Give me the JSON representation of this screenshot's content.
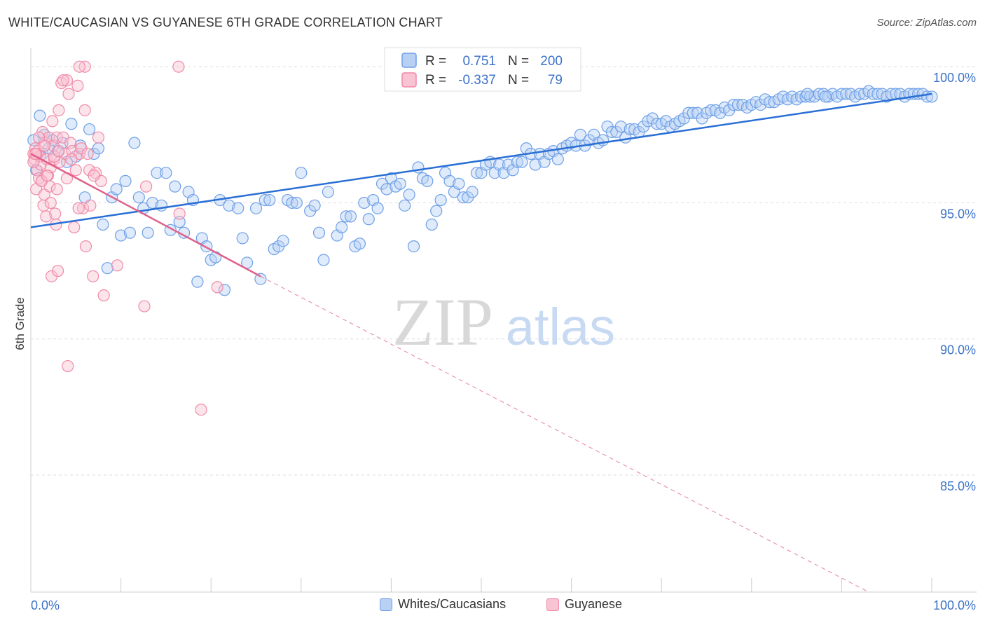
{
  "title": "WHITE/CAUCASIAN VS GUYANESE 6TH GRADE CORRELATION CHART",
  "source": "Source: ZipAtlas.com",
  "watermark": {
    "zip": "ZIP",
    "atlas": "atlas"
  },
  "colors": {
    "blue": "#6ea0e8",
    "blue_fill": "#b8d0f3",
    "blue_line": "#2a6fd4",
    "pink": "#f08aa8",
    "pink_fill": "#f8c3d3",
    "pink_line": "#e0608a",
    "axis_text": "#3d73c9",
    "grid": "#dddddd"
  },
  "legend_box": {
    "rows": [
      {
        "r_label": "R =",
        "r_value": "0.751",
        "n_label": "N =",
        "n_value": "200"
      },
      {
        "r_label": "R =",
        "r_value": "-0.337",
        "n_label": "N =",
        "n_value": "79"
      }
    ]
  },
  "legend_bottom": {
    "blue": "Whites/Caucasians",
    "pink": "Guyanese"
  },
  "chart_data": {
    "type": "scatter",
    "ylabel": "6th Grade",
    "xlabel": "",
    "xlim": [
      0,
      100
    ],
    "ylim": [
      80.7,
      100.7
    ],
    "x_tick_labels": [
      "0.0%",
      "100.0%"
    ],
    "y_ticks": [
      85,
      90,
      95,
      100
    ],
    "y_tick_labels": [
      "85.0%",
      "90.0%",
      "95.0%",
      "100.0%"
    ],
    "grid": true,
    "series": [
      {
        "name": "Whites/Caucasians",
        "trend": {
          "x": [
            0,
            100
          ],
          "y": [
            94.1,
            99.0
          ]
        },
        "points": [
          [
            0.3,
            97.3
          ],
          [
            0.6,
            96.2
          ],
          [
            1.0,
            98.2
          ],
          [
            1.3,
            96.8
          ],
          [
            1.5,
            97.5
          ],
          [
            2.0,
            97.0
          ],
          [
            2.4,
            97.3
          ],
          [
            3.0,
            96.9
          ],
          [
            3.5,
            97.2
          ],
          [
            4.0,
            96.5
          ],
          [
            4.5,
            97.9
          ],
          [
            5.0,
            96.7
          ],
          [
            5.5,
            97.1
          ],
          [
            6.0,
            95.2
          ],
          [
            6.5,
            97.7
          ],
          [
            7.0,
            96.8
          ],
          [
            7.5,
            97.0
          ],
          [
            8.0,
            94.2
          ],
          [
            8.5,
            92.6
          ],
          [
            9.0,
            95.2
          ],
          [
            9.5,
            95.5
          ],
          [
            10.0,
            93.8
          ],
          [
            10.5,
            95.8
          ],
          [
            11.0,
            93.9
          ],
          [
            11.5,
            97.2
          ],
          [
            12.0,
            95.2
          ],
          [
            12.5,
            94.8
          ],
          [
            13.0,
            93.9
          ],
          [
            13.5,
            95.0
          ],
          [
            14.0,
            96.1
          ],
          [
            14.5,
            94.9
          ],
          [
            15.0,
            96.1
          ],
          [
            15.5,
            94.0
          ],
          [
            16.0,
            95.6
          ],
          [
            16.5,
            94.3
          ],
          [
            17.0,
            93.9
          ],
          [
            17.5,
            95.4
          ],
          [
            18.0,
            95.1
          ],
          [
            18.5,
            92.1
          ],
          [
            19.0,
            93.7
          ],
          [
            19.5,
            93.4
          ],
          [
            20.0,
            92.9
          ],
          [
            20.5,
            93.0
          ],
          [
            21.0,
            95.1
          ],
          [
            21.5,
            91.8
          ],
          [
            22.0,
            94.9
          ],
          [
            23.0,
            94.8
          ],
          [
            23.5,
            93.7
          ],
          [
            24.0,
            92.8
          ],
          [
            25.0,
            94.8
          ],
          [
            25.5,
            92.2
          ],
          [
            26.0,
            95.1
          ],
          [
            26.5,
            95.1
          ],
          [
            27.0,
            93.3
          ],
          [
            27.5,
            93.4
          ],
          [
            28.0,
            93.6
          ],
          [
            28.5,
            95.1
          ],
          [
            29.0,
            95.0
          ],
          [
            29.5,
            95.0
          ],
          [
            30.0,
            96.1
          ],
          [
            31.0,
            94.7
          ],
          [
            31.5,
            94.9
          ],
          [
            32.0,
            93.9
          ],
          [
            32.5,
            92.9
          ],
          [
            33.0,
            95.4
          ],
          [
            34.0,
            93.8
          ],
          [
            34.5,
            94.1
          ],
          [
            35.0,
            94.5
          ],
          [
            35.5,
            94.5
          ],
          [
            36.0,
            93.4
          ],
          [
            36.5,
            93.5
          ],
          [
            37.0,
            95.0
          ],
          [
            37.5,
            94.4
          ],
          [
            38.0,
            95.1
          ],
          [
            38.5,
            94.8
          ],
          [
            39.0,
            95.7
          ],
          [
            39.5,
            95.5
          ],
          [
            40.0,
            95.9
          ],
          [
            40.5,
            95.6
          ],
          [
            41.0,
            95.7
          ],
          [
            41.5,
            94.9
          ],
          [
            42.0,
            95.3
          ],
          [
            42.5,
            93.4
          ],
          [
            43.0,
            96.3
          ],
          [
            43.5,
            95.9
          ],
          [
            44.0,
            95.8
          ],
          [
            44.5,
            94.2
          ],
          [
            45.0,
            94.7
          ],
          [
            45.5,
            95.1
          ],
          [
            46.0,
            96.1
          ],
          [
            46.5,
            95.8
          ],
          [
            47.0,
            95.4
          ],
          [
            47.5,
            95.7
          ],
          [
            48.0,
            95.2
          ],
          [
            48.5,
            95.2
          ],
          [
            49.0,
            95.4
          ],
          [
            49.5,
            96.1
          ],
          [
            50.0,
            96.1
          ],
          [
            50.5,
            96.4
          ],
          [
            51.0,
            96.5
          ],
          [
            51.5,
            96.1
          ],
          [
            52.0,
            96.4
          ],
          [
            52.5,
            96.1
          ],
          [
            53.0,
            96.4
          ],
          [
            53.5,
            96.2
          ],
          [
            54.0,
            96.5
          ],
          [
            54.5,
            96.5
          ],
          [
            55.0,
            97.0
          ],
          [
            55.5,
            96.8
          ],
          [
            56.0,
            96.4
          ],
          [
            56.5,
            96.8
          ],
          [
            57.0,
            96.5
          ],
          [
            57.5,
            96.8
          ],
          [
            58.0,
            96.9
          ],
          [
            58.5,
            96.6
          ],
          [
            59.0,
            97.0
          ],
          [
            59.5,
            97.1
          ],
          [
            60.0,
            97.2
          ],
          [
            60.5,
            97.1
          ],
          [
            61.0,
            97.5
          ],
          [
            61.5,
            97.1
          ],
          [
            62.0,
            97.3
          ],
          [
            62.5,
            97.5
          ],
          [
            63.0,
            97.2
          ],
          [
            63.5,
            97.3
          ],
          [
            64.0,
            97.8
          ],
          [
            64.5,
            97.6
          ],
          [
            65.0,
            97.6
          ],
          [
            65.5,
            97.8
          ],
          [
            66.0,
            97.4
          ],
          [
            66.5,
            97.7
          ],
          [
            67.0,
            97.7
          ],
          [
            67.5,
            97.6
          ],
          [
            68.0,
            97.8
          ],
          [
            68.5,
            98.0
          ],
          [
            69.0,
            98.1
          ],
          [
            69.5,
            97.9
          ],
          [
            70.0,
            97.9
          ],
          [
            70.5,
            98.0
          ],
          [
            71.0,
            97.8
          ],
          [
            71.5,
            97.9
          ],
          [
            72.0,
            98.0
          ],
          [
            72.5,
            98.1
          ],
          [
            73.0,
            98.3
          ],
          [
            73.5,
            98.3
          ],
          [
            74.0,
            98.3
          ],
          [
            74.5,
            98.1
          ],
          [
            75.0,
            98.3
          ],
          [
            75.5,
            98.4
          ],
          [
            76.0,
            98.4
          ],
          [
            76.5,
            98.3
          ],
          [
            77.0,
            98.5
          ],
          [
            77.5,
            98.4
          ],
          [
            78.0,
            98.6
          ],
          [
            78.5,
            98.6
          ],
          [
            79.0,
            98.6
          ],
          [
            79.5,
            98.5
          ],
          [
            80.0,
            98.6
          ],
          [
            80.5,
            98.7
          ],
          [
            81.0,
            98.6
          ],
          [
            81.5,
            98.8
          ],
          [
            82.0,
            98.7
          ],
          [
            82.5,
            98.7
          ],
          [
            83.0,
            98.8
          ],
          [
            83.5,
            98.9
          ],
          [
            84.0,
            98.8
          ],
          [
            84.5,
            98.9
          ],
          [
            85.0,
            98.8
          ],
          [
            85.5,
            98.9
          ],
          [
            86.0,
            98.9
          ],
          [
            86.5,
            98.9
          ],
          [
            87.0,
            98.9
          ],
          [
            87.5,
            99.0
          ],
          [
            88.0,
            99.0
          ],
          [
            88.5,
            98.9
          ],
          [
            89.0,
            99.0
          ],
          [
            89.5,
            98.9
          ],
          [
            90.0,
            99.0
          ],
          [
            90.5,
            99.0
          ],
          [
            91.0,
            99.0
          ],
          [
            91.5,
            98.9
          ],
          [
            92.0,
            99.0
          ],
          [
            92.5,
            99.0
          ],
          [
            93.0,
            99.1
          ],
          [
            93.5,
            99.0
          ],
          [
            94.0,
            99.0
          ],
          [
            94.5,
            99.0
          ],
          [
            95.0,
            98.9
          ],
          [
            95.5,
            99.0
          ],
          [
            96.0,
            99.0
          ],
          [
            96.5,
            99.0
          ],
          [
            97.0,
            98.9
          ],
          [
            97.5,
            99.0
          ],
          [
            98.0,
            99.0
          ],
          [
            98.5,
            99.0
          ],
          [
            99.0,
            99.0
          ],
          [
            99.5,
            98.9
          ],
          [
            100.0,
            98.9
          ],
          [
            88.2,
            98.9
          ],
          [
            86.2,
            99.0
          ]
        ]
      },
      {
        "name": "Guyanese",
        "trend": {
          "x": [
            0,
            25.5
          ],
          "y": [
            96.8,
            92.3
          ],
          "dash_x": [
            25.5,
            93.0
          ],
          "dash_y": [
            92.3,
            80.7
          ]
        },
        "points": [
          [
            0.3,
            96.8
          ],
          [
            0.4,
            96.6
          ],
          [
            0.5,
            97.0
          ],
          [
            0.6,
            95.5
          ],
          [
            0.7,
            96.2
          ],
          [
            0.8,
            96.9
          ],
          [
            0.9,
            95.9
          ],
          [
            1.0,
            96.7
          ],
          [
            1.1,
            96.4
          ],
          [
            1.2,
            95.8
          ],
          [
            1.3,
            97.6
          ],
          [
            1.4,
            94.9
          ],
          [
            1.5,
            95.3
          ],
          [
            1.6,
            97.2
          ],
          [
            1.7,
            94.5
          ],
          [
            1.8,
            96.6
          ],
          [
            1.9,
            96.0
          ],
          [
            2.0,
            97.4
          ],
          [
            2.1,
            95.6
          ],
          [
            2.2,
            96.3
          ],
          [
            2.3,
            92.3
          ],
          [
            2.4,
            98.0
          ],
          [
            2.5,
            97.1
          ],
          [
            2.6,
            96.6
          ],
          [
            2.7,
            94.6
          ],
          [
            2.8,
            94.2
          ],
          [
            2.9,
            97.4
          ],
          [
            3.0,
            92.5
          ],
          [
            3.1,
            98.4
          ],
          [
            3.2,
            96.5
          ],
          [
            3.4,
            99.4
          ],
          [
            3.6,
            97.4
          ],
          [
            3.8,
            96.8
          ],
          [
            4.0,
            95.9
          ],
          [
            4.2,
            99.0
          ],
          [
            4.4,
            97.2
          ],
          [
            4.6,
            96.9
          ],
          [
            4.8,
            94.1
          ],
          [
            5.0,
            96.2
          ],
          [
            5.2,
            99.3
          ],
          [
            5.4,
            96.8
          ],
          [
            5.6,
            97.0
          ],
          [
            5.8,
            94.8
          ],
          [
            6.0,
            100.0
          ],
          [
            6.3,
            96.8
          ],
          [
            6.6,
            94.9
          ],
          [
            6.9,
            92.3
          ],
          [
            7.2,
            96.1
          ],
          [
            7.5,
            97.4
          ],
          [
            7.8,
            95.8
          ],
          [
            8.1,
            91.6
          ],
          [
            9.6,
            92.7
          ],
          [
            12.6,
            91.2
          ],
          [
            12.8,
            95.6
          ],
          [
            16.5,
            94.6
          ],
          [
            16.4,
            100.0
          ],
          [
            18.9,
            87.4
          ],
          [
            20.7,
            91.9
          ],
          [
            4.1,
            89.0
          ],
          [
            6.1,
            93.4
          ],
          [
            6.0,
            98.4
          ],
          [
            5.4,
            100.0
          ],
          [
            4.0,
            99.5
          ],
          [
            3.6,
            99.5
          ],
          [
            2.6,
            96.7
          ],
          [
            1.5,
            97.1
          ],
          [
            0.9,
            97.4
          ],
          [
            0.6,
            96.8
          ],
          [
            0.3,
            96.5
          ],
          [
            1.2,
            95.8
          ],
          [
            2.2,
            95.0
          ],
          [
            3.1,
            96.9
          ],
          [
            4.5,
            96.6
          ],
          [
            5.3,
            94.8
          ],
          [
            6.5,
            96.2
          ],
          [
            7.0,
            96.0
          ],
          [
            1.8,
            96.0
          ],
          [
            2.9,
            95.5
          ],
          [
            0.5,
            96.8
          ]
        ]
      }
    ]
  }
}
